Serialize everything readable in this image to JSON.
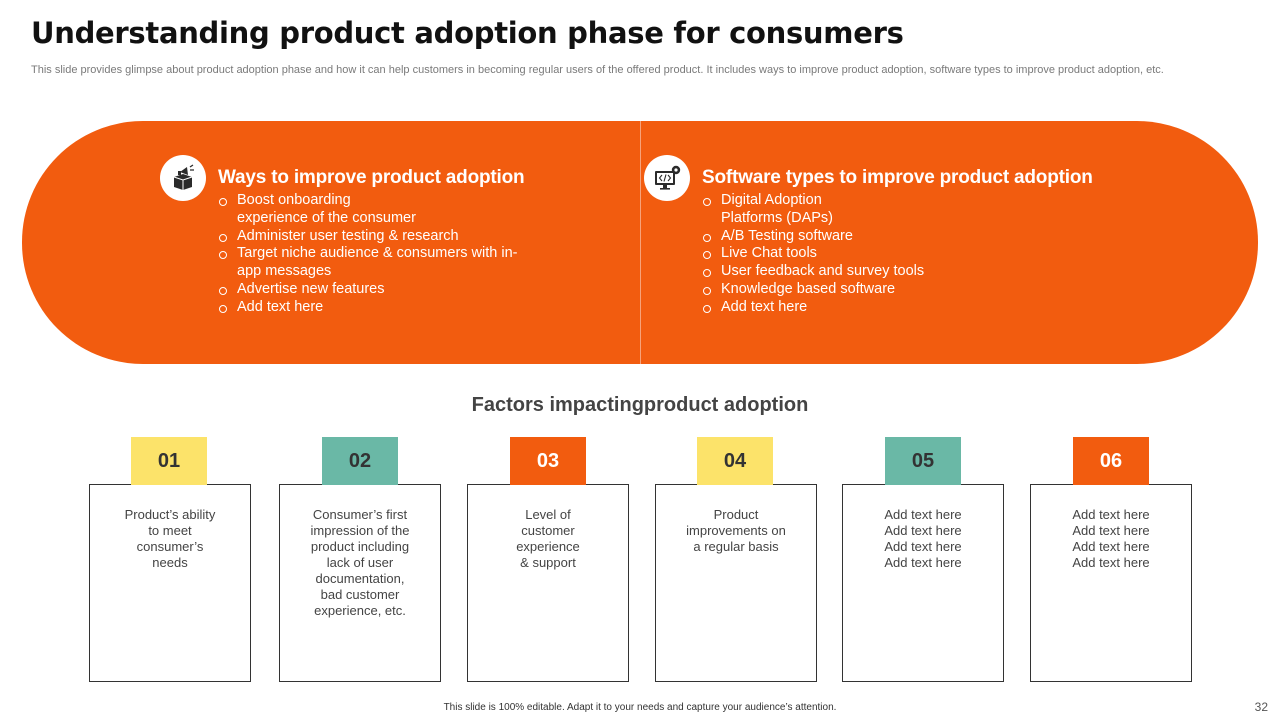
{
  "header": {
    "title": "Understanding product adoption phase for consumers",
    "subtitle": "This slide provides glimpse about product adoption phase and how it can help customers in becoming regular users of the offered product. It includes ways to improve product adoption, software types to improve product adoption, etc."
  },
  "panels": {
    "left": {
      "icon": "megaphone-box-icon",
      "heading": "Ways to improve product adoption",
      "items": [
        "Boost onboarding experience of the consumer",
        "Administer user testing & research",
        "Target niche audience & consumers with in-app messages",
        "Advertise new features",
        "Add text here"
      ]
    },
    "right": {
      "icon": "monitor-code-gear-icon",
      "heading": "Software types to improve product adoption",
      "items": [
        "Digital Adoption Platforms (DAPs)",
        "A/B Testing software",
        "Live Chat tools",
        "User feedback and survey tools",
        "Knowledge based software",
        "Add text here"
      ]
    }
  },
  "factors": {
    "title": "Factors impactingproduct adoption",
    "cards": [
      {
        "number": "01",
        "color": "#fce36a",
        "lines": [
          "Product’s ability",
          "to meet",
          "consumer’s",
          "needs"
        ]
      },
      {
        "number": "02",
        "color": "#6ab8a6",
        "lines": [
          "Consumer’s first",
          "impression of the",
          "product including",
          "lack of user",
          "documentation,",
          "bad customer",
          "experience, etc."
        ]
      },
      {
        "number": "03",
        "color": "#f25c0f",
        "lines": [
          "Level of",
          "customer",
          "experience",
          "& support"
        ]
      },
      {
        "number": "04",
        "color": "#fce36a",
        "lines": [
          "Product",
          "improvements on",
          "a regular basis"
        ]
      },
      {
        "number": "05",
        "color": "#6ab8a6",
        "lines": [
          "Add text here",
          "Add text here",
          "Add text here",
          "Add text here"
        ]
      },
      {
        "number": "06",
        "color": "#f25c0f",
        "lines": [
          "Add text here",
          "Add text here",
          "Add text here",
          "Add text here"
        ]
      }
    ]
  },
  "footer": {
    "note": "This slide is 100% editable. Adapt it to your needs and capture your audience’s attention.",
    "page_number": "32"
  },
  "colors": {
    "accent_orange": "#f25c0f",
    "yellow": "#fce36a",
    "teal": "#6ab8a6"
  }
}
